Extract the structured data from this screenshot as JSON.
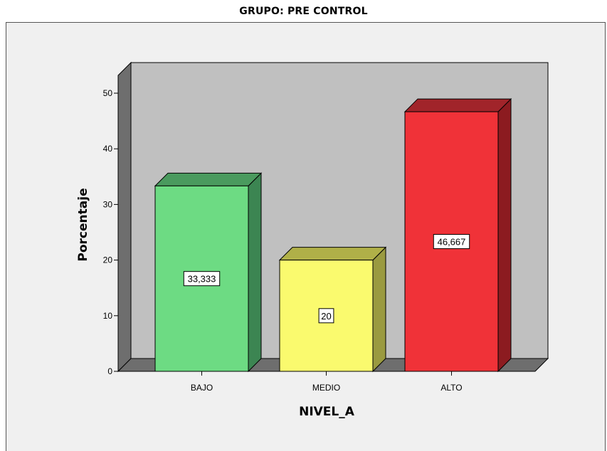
{
  "chart_data": {
    "type": "bar",
    "title": "GRUPO: PRE CONTROL",
    "xlabel": "NIVEL_A",
    "ylabel": "Porcentaje",
    "ylim": [
      0,
      50
    ],
    "yticks": [
      "0",
      "10",
      "20",
      "30",
      "40",
      "50"
    ],
    "categories": [
      "BAJO",
      "MEDIO",
      "ALTO"
    ],
    "values": [
      33.333,
      20,
      46.667
    ],
    "data_labels": [
      "33,333",
      "20",
      "46,667"
    ],
    "colors": [
      "#6ddb83",
      "#fafa6e",
      "#f03238"
    ],
    "side_colors": [
      "#3c8552",
      "#9a9a40",
      "#8c1b20"
    ],
    "top_colors": [
      "#4a9a5e",
      "#b0b048",
      "#a1242a"
    ],
    "plot_background": "#c0c0c0",
    "wall_color": "#6e6e6e",
    "grid": false,
    "three_d": true
  }
}
